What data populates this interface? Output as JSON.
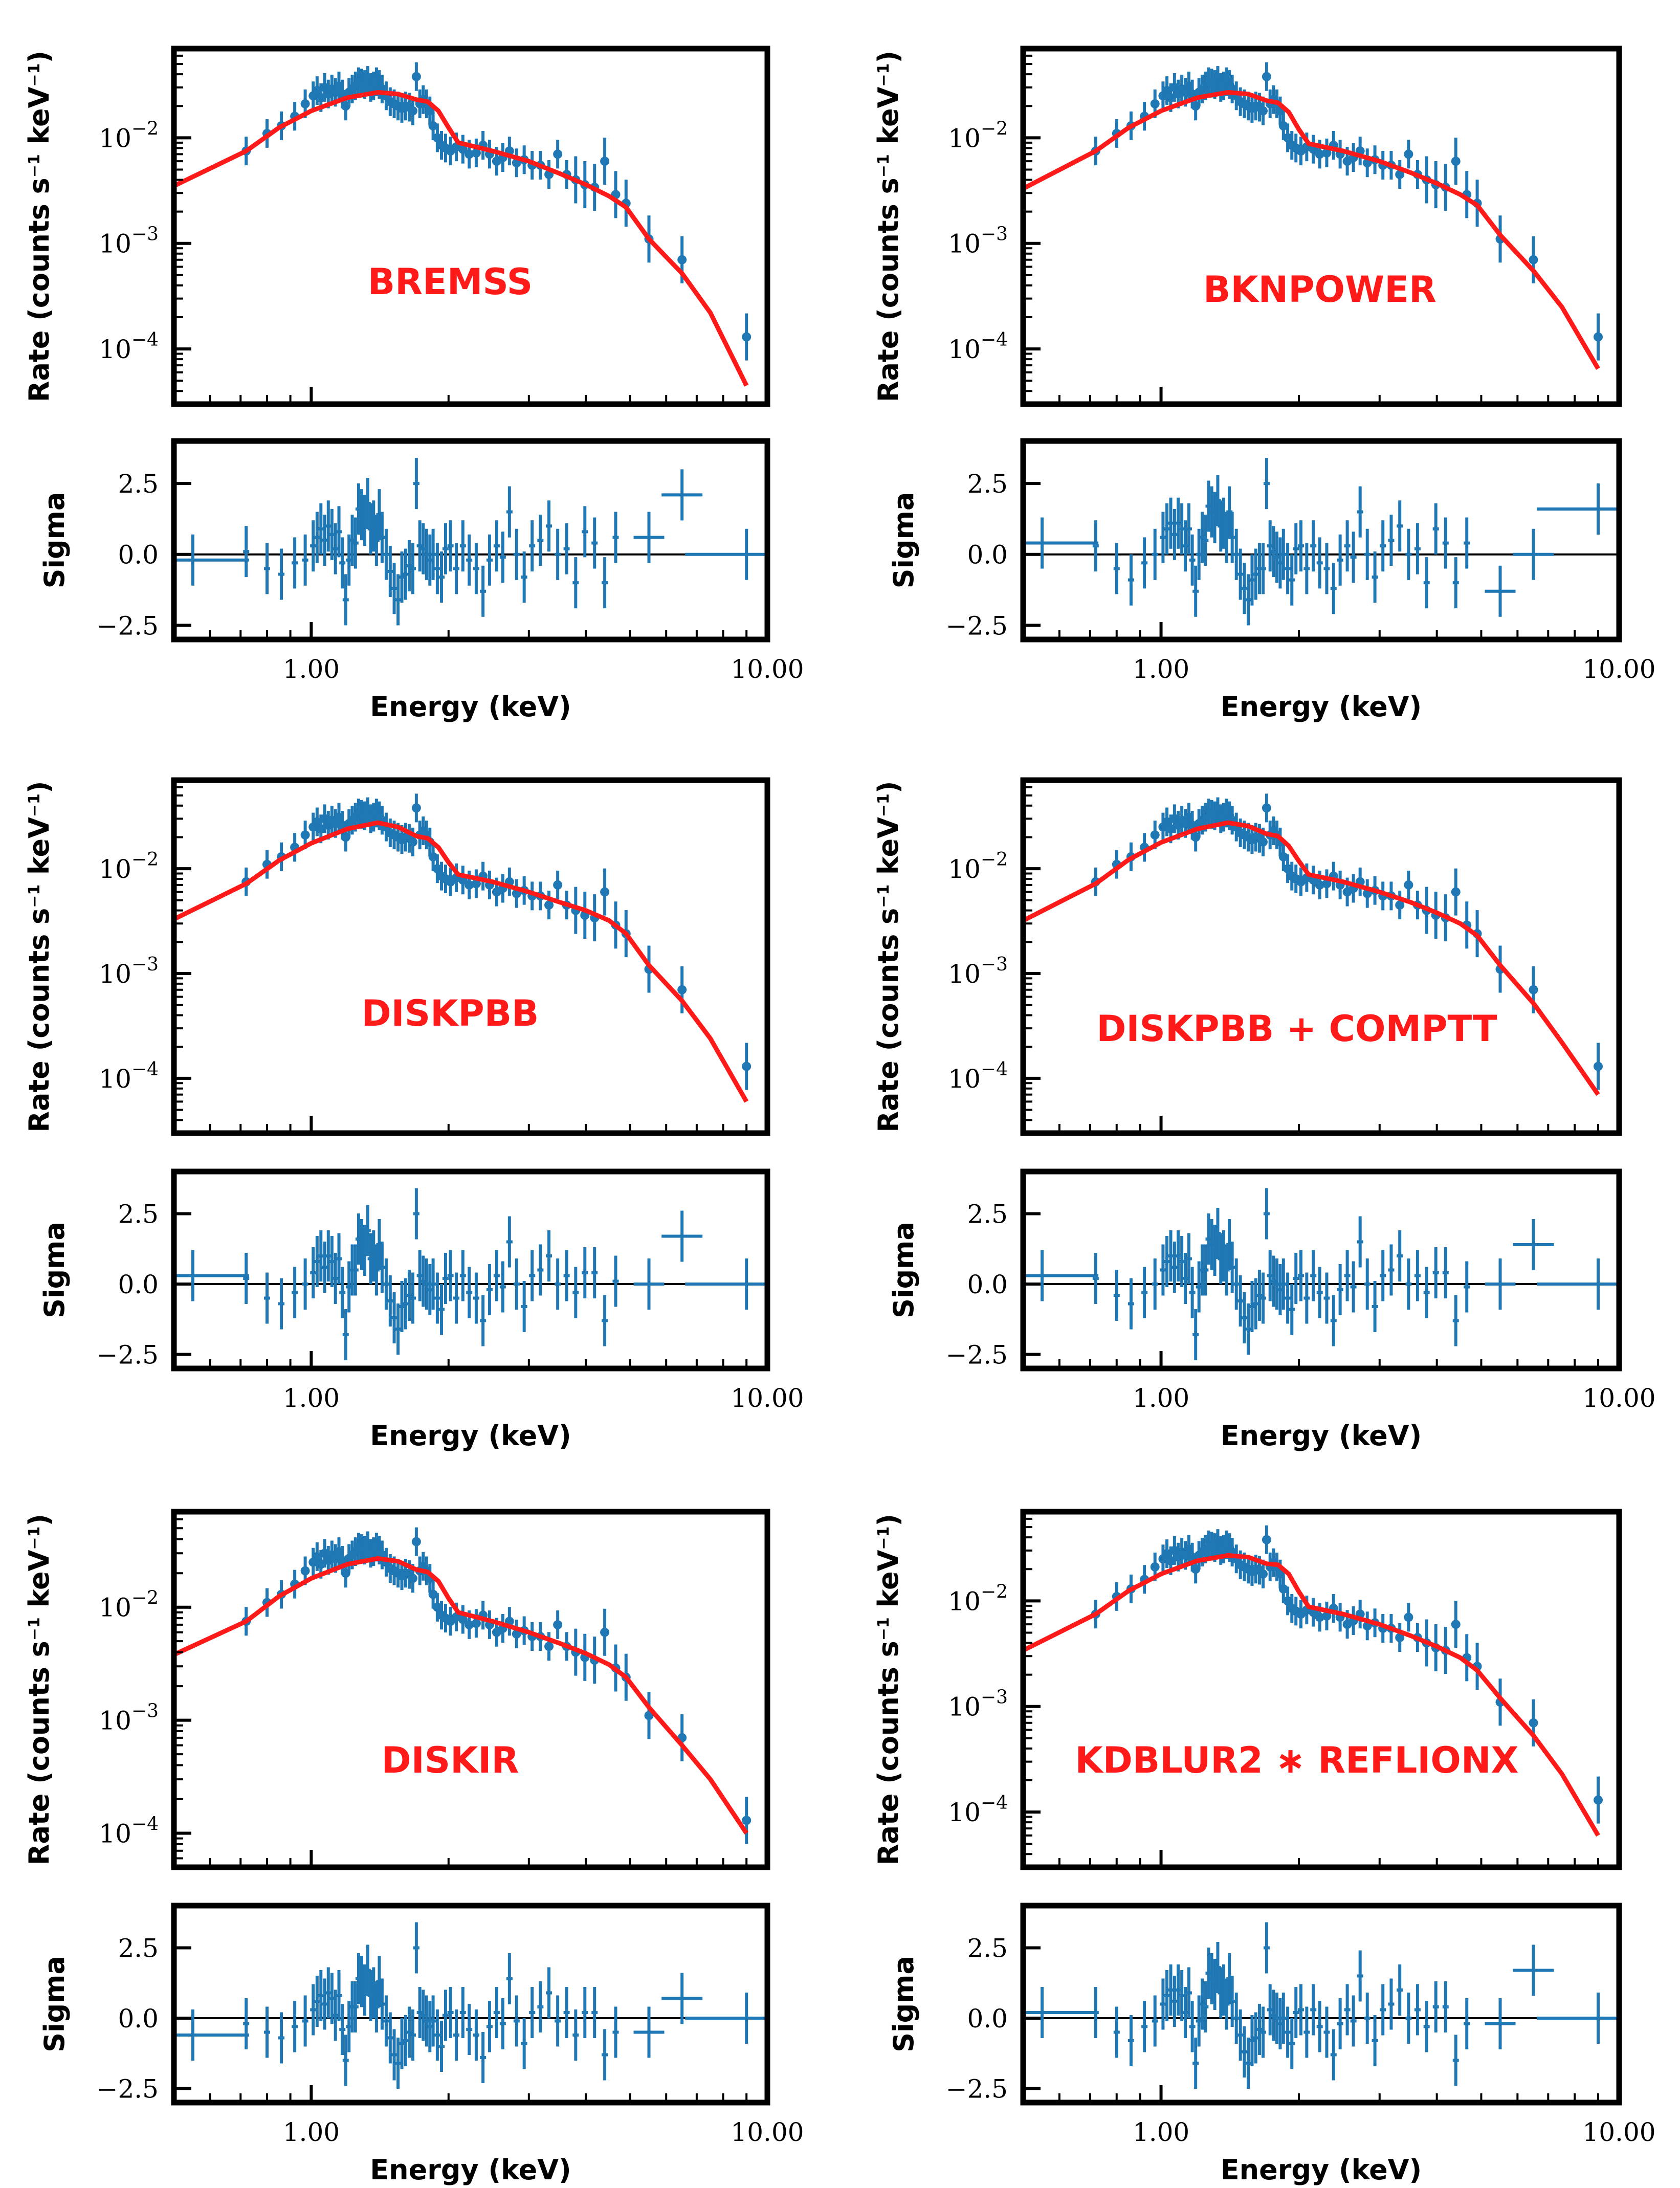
{
  "colors": {
    "data": "#1f77b4",
    "model": "#ff1a1a",
    "axis": "#000000"
  },
  "labels": {
    "rate_ylabel": "Rate (counts s$^{-1}$ keV$^{-1}$)",
    "rate_ylabel_parts": [
      "Rate (counts s",
      "−1",
      " keV",
      "−1",
      ")"
    ],
    "sigma_ylabel": "Sigma",
    "xlabel": "Energy (keV)"
  },
  "axes": {
    "energy_range_kev": [
      0.5,
      10
    ],
    "x_tick_labels": [
      {
        "v": 1,
        "text": "1.00"
      },
      {
        "v": 10,
        "text": "10.00"
      }
    ],
    "rate_ticks": [
      {
        "exp": -2,
        "text": "10"
      },
      {
        "exp": -3,
        "text": "10"
      },
      {
        "exp": -4,
        "text": "10"
      }
    ],
    "sigma_ylim": [
      -3,
      4
    ],
    "sigma_ticks": [
      {
        "v": 2.5,
        "text": "2.5"
      },
      {
        "v": 0,
        "text": "0.0"
      },
      {
        "v": -2.5,
        "text": "−2.5"
      }
    ]
  },
  "chart_data": {
    "type": "scatter",
    "xscale": "log",
    "yscale": "log",
    "observed_spectrum": {
      "x": [
        0.72,
        0.8,
        0.86,
        0.92,
        0.97,
        1.01,
        1.03,
        1.05,
        1.07,
        1.09,
        1.11,
        1.13,
        1.15,
        1.17,
        1.19,
        1.21,
        1.23,
        1.25,
        1.27,
        1.29,
        1.31,
        1.33,
        1.35,
        1.37,
        1.39,
        1.41,
        1.43,
        1.46,
        1.49,
        1.52,
        1.55,
        1.58,
        1.61,
        1.64,
        1.67,
        1.7,
        1.73,
        1.76,
        1.79,
        1.82,
        1.85,
        1.89,
        1.93,
        1.97,
        2.02,
        2.08,
        2.15,
        2.22,
        2.3,
        2.38,
        2.46,
        2.55,
        2.63,
        2.72,
        2.82,
        2.93,
        3.05,
        3.18,
        3.32,
        3.47,
        3.63,
        3.8,
        3.98,
        4.18,
        4.4,
        4.65,
        4.9,
        5.5,
        6.5,
        9.0
      ],
      "y": [
        0.0075,
        0.011,
        0.013,
        0.016,
        0.021,
        0.025,
        0.028,
        0.024,
        0.03,
        0.026,
        0.029,
        0.027,
        0.031,
        0.026,
        0.02,
        0.027,
        0.029,
        0.031,
        0.034,
        0.033,
        0.032,
        0.035,
        0.03,
        0.031,
        0.034,
        0.032,
        0.029,
        0.025,
        0.022,
        0.021,
        0.02,
        0.019,
        0.02,
        0.0195,
        0.018,
        0.038,
        0.021,
        0.023,
        0.021,
        0.018,
        0.013,
        0.01,
        0.0085,
        0.008,
        0.0075,
        0.0082,
        0.0078,
        0.007,
        0.0072,
        0.0085,
        0.007,
        0.006,
        0.0065,
        0.0075,
        0.0058,
        0.0062,
        0.0055,
        0.0055,
        0.0045,
        0.007,
        0.0045,
        0.004,
        0.0036,
        0.0034,
        0.006,
        0.0029,
        0.0024,
        0.0011,
        0.0007,
        0.00013
      ]
    },
    "residuals_x": [
      0.55,
      0.72,
      0.8,
      0.86,
      0.92,
      0.97,
      1.01,
      1.03,
      1.05,
      1.07,
      1.09,
      1.11,
      1.13,
      1.15,
      1.17,
      1.19,
      1.21,
      1.23,
      1.25,
      1.27,
      1.29,
      1.31,
      1.33,
      1.35,
      1.37,
      1.39,
      1.41,
      1.43,
      1.46,
      1.49,
      1.52,
      1.55,
      1.58,
      1.61,
      1.64,
      1.67,
      1.7,
      1.73,
      1.76,
      1.79,
      1.82,
      1.85,
      1.89,
      1.93,
      1.97,
      2.02,
      2.08,
      2.15,
      2.22,
      2.3,
      2.38,
      2.46,
      2.55,
      2.63,
      2.72,
      2.82,
      2.93,
      3.05,
      3.18,
      3.32,
      3.47,
      3.63,
      3.8,
      3.98,
      4.18,
      4.4,
      4.65,
      5.5,
      6.5,
      9.0
    ],
    "panels": [
      {
        "model": "BREMSS",
        "rate_ylim": [
          3e-05,
          0.07
        ],
        "model_curve": {
          "x": [
            0.5,
            0.72,
            0.85,
            1.0,
            1.2,
            1.4,
            1.55,
            1.7,
            1.8,
            1.9,
            2.0,
            2.1,
            2.5,
            3.0,
            3.5,
            4.0,
            4.5,
            4.9,
            5.5,
            6.5,
            7.5,
            9.0
          ],
          "y": [
            0.0035,
            0.0075,
            0.0125,
            0.018,
            0.024,
            0.027,
            0.026,
            0.023,
            0.022,
            0.018,
            0.0125,
            0.009,
            0.0075,
            0.006,
            0.0046,
            0.0036,
            0.0028,
            0.0022,
            0.0011,
            0.00052,
            0.00022,
            4.5e-05
          ]
        },
        "residuals": [
          -0.2,
          0.1,
          -0.5,
          -0.7,
          -0.3,
          -0.2,
          0.3,
          0.6,
          0.9,
          0.5,
          1.0,
          0.7,
          0.2,
          0.8,
          -0.3,
          -1.6,
          -0.2,
          0.5,
          0.4,
          1.6,
          1.4,
          1.2,
          1.8,
          0.9,
          1.0,
          0.5,
          1.4,
          0.6,
          0.0,
          -0.6,
          -1.2,
          -1.6,
          -0.8,
          -0.7,
          -0.4,
          -0.5,
          2.5,
          0.3,
          0.2,
          0.0,
          -0.2,
          0.0,
          -0.5,
          -0.8,
          0.2,
          0.3,
          -0.5,
          0.3,
          -0.2,
          -0.5,
          -1.3,
          -0.2,
          0.3,
          -0.1,
          1.5,
          0.0,
          -0.8,
          0.3,
          0.5,
          1.0,
          0.0,
          0.2,
          -1.0,
          0.8,
          0.4,
          -1.0,
          0.6,
          0.6,
          2.1,
          0.0
        ]
      },
      {
        "model": "BKNPOWER",
        "rate_ylim": [
          3e-05,
          0.07
        ],
        "model_curve": {
          "x": [
            0.5,
            0.72,
            0.85,
            1.0,
            1.2,
            1.4,
            1.55,
            1.7,
            1.8,
            1.9,
            2.0,
            2.1,
            2.5,
            3.0,
            3.5,
            4.0,
            4.5,
            4.9,
            5.5,
            6.5,
            7.5,
            9.0
          ],
          "y": [
            0.0033,
            0.0075,
            0.0125,
            0.018,
            0.024,
            0.027,
            0.026,
            0.0225,
            0.0215,
            0.0175,
            0.012,
            0.0088,
            0.0075,
            0.006,
            0.0047,
            0.0037,
            0.0029,
            0.0023,
            0.0012,
            0.00055,
            0.00025,
            6.5e-05
          ]
        },
        "residuals": [
          0.4,
          0.3,
          -0.5,
          -0.9,
          -0.3,
          0.0,
          0.6,
          0.9,
          1.1,
          0.7,
          1.1,
          0.9,
          0.3,
          0.9,
          -0.2,
          -1.3,
          0.0,
          0.6,
          0.5,
          1.7,
          1.5,
          1.3,
          1.9,
          1.0,
          1.1,
          0.6,
          1.5,
          0.6,
          0.0,
          -0.7,
          -1.2,
          -1.6,
          -0.9,
          -0.7,
          -0.5,
          -0.5,
          2.5,
          0.3,
          0.1,
          -0.1,
          -0.3,
          0.0,
          -0.5,
          -0.9,
          0.2,
          0.3,
          -0.5,
          0.3,
          -0.3,
          -0.5,
          -1.2,
          -0.2,
          0.3,
          -0.1,
          1.5,
          0.0,
          -0.8,
          0.3,
          0.5,
          1.0,
          0.0,
          0.2,
          -1.0,
          0.9,
          0.4,
          -1.0,
          0.4,
          -1.3,
          0.0,
          1.6
        ]
      },
      {
        "model": "DISKPBB",
        "rate_ylim": [
          3e-05,
          0.07
        ],
        "model_curve": {
          "x": [
            0.5,
            0.72,
            0.85,
            1.0,
            1.2,
            1.4,
            1.55,
            1.7,
            1.8,
            1.9,
            2.0,
            2.1,
            2.5,
            3.0,
            3.5,
            4.0,
            4.5,
            4.9,
            5.5,
            6.5,
            7.5,
            9.0
          ],
          "y": [
            0.0033,
            0.0072,
            0.012,
            0.0175,
            0.024,
            0.0275,
            0.025,
            0.0205,
            0.0195,
            0.016,
            0.0115,
            0.0088,
            0.0075,
            0.006,
            0.0048,
            0.004,
            0.0032,
            0.0024,
            0.0012,
            0.00055,
            0.00024,
            6e-05
          ]
        },
        "residuals": [
          0.3,
          0.2,
          -0.5,
          -0.7,
          -0.3,
          0.0,
          0.4,
          0.8,
          1.0,
          0.6,
          1.0,
          0.8,
          0.2,
          0.9,
          -0.3,
          -1.8,
          -0.1,
          0.5,
          0.5,
          1.6,
          1.4,
          1.2,
          1.9,
          0.9,
          1.0,
          0.5,
          1.4,
          0.6,
          0.0,
          -0.6,
          -1.2,
          -1.6,
          -0.8,
          -0.7,
          -0.4,
          -0.5,
          2.5,
          0.3,
          0.1,
          0.0,
          -0.2,
          0.0,
          -0.5,
          -0.9,
          0.2,
          0.3,
          -0.5,
          0.3,
          -0.3,
          -0.5,
          -1.3,
          -0.2,
          0.3,
          -0.1,
          1.5,
          0.0,
          -0.8,
          0.3,
          0.5,
          1.0,
          0.0,
          0.3,
          -0.3,
          0.4,
          0.4,
          -1.3,
          0.1,
          0.0,
          1.7,
          0.0
        ]
      },
      {
        "model": "DISKPBB + COMPTT",
        "rate_ylim": [
          3e-05,
          0.07
        ],
        "model_curve": {
          "x": [
            0.5,
            0.72,
            0.85,
            1.0,
            1.2,
            1.4,
            1.55,
            1.7,
            1.8,
            1.9,
            2.0,
            2.1,
            2.5,
            3.0,
            3.5,
            4.0,
            4.5,
            4.9,
            5.5,
            6.5,
            7.5,
            9.0
          ],
          "y": [
            0.0032,
            0.0072,
            0.0122,
            0.0178,
            0.024,
            0.0275,
            0.0255,
            0.0215,
            0.0205,
            0.0165,
            0.0118,
            0.0088,
            0.0075,
            0.006,
            0.0048,
            0.0038,
            0.003,
            0.0023,
            0.0012,
            0.00052,
            0.00022,
            7e-05
          ]
        },
        "residuals": [
          0.3,
          0.2,
          -0.4,
          -0.7,
          -0.3,
          0.0,
          0.5,
          0.8,
          1.0,
          0.6,
          1.0,
          0.8,
          0.2,
          0.9,
          -0.3,
          -1.8,
          -0.1,
          0.5,
          0.5,
          1.6,
          1.4,
          1.2,
          1.8,
          0.9,
          1.0,
          0.5,
          1.4,
          0.6,
          0.0,
          -0.6,
          -1.2,
          -1.6,
          -0.8,
          -0.7,
          -0.4,
          -0.5,
          2.5,
          0.3,
          0.1,
          0.0,
          -0.2,
          0.0,
          -0.5,
          -0.9,
          0.2,
          0.3,
          -0.5,
          0.3,
          -0.3,
          -0.5,
          -1.3,
          -0.2,
          0.3,
          -0.1,
          1.5,
          0.0,
          -0.8,
          0.3,
          0.5,
          1.0,
          0.0,
          0.3,
          -0.3,
          0.4,
          0.4,
          -1.3,
          -0.1,
          0.0,
          1.4,
          0.0
        ]
      },
      {
        "model": "DISKIR",
        "rate_ylim": [
          5e-05,
          0.07
        ],
        "model_curve": {
          "x": [
            0.5,
            0.72,
            0.85,
            1.0,
            1.2,
            1.4,
            1.55,
            1.7,
            1.8,
            1.9,
            2.0,
            2.1,
            2.5,
            3.0,
            3.5,
            4.0,
            4.5,
            4.9,
            5.5,
            6.5,
            7.5,
            9.0
          ],
          "y": [
            0.0038,
            0.0075,
            0.0125,
            0.018,
            0.024,
            0.027,
            0.0255,
            0.0215,
            0.0205,
            0.017,
            0.012,
            0.009,
            0.0075,
            0.006,
            0.0048,
            0.0039,
            0.0031,
            0.0024,
            0.0013,
            0.0006,
            0.0003,
            0.0001
          ]
        },
        "residuals": [
          -0.6,
          -0.2,
          -0.5,
          -0.7,
          -0.3,
          -0.1,
          0.3,
          0.6,
          0.8,
          0.5,
          0.9,
          0.7,
          0.1,
          0.8,
          -0.4,
          -1.5,
          -0.3,
          0.4,
          0.4,
          1.4,
          1.3,
          1.0,
          1.7,
          0.8,
          0.9,
          0.4,
          1.3,
          0.5,
          -0.1,
          -0.7,
          -1.3,
          -1.6,
          -0.9,
          -0.8,
          -0.5,
          -0.6,
          2.5,
          0.2,
          0.1,
          -0.1,
          -0.3,
          -0.1,
          -0.6,
          -1.0,
          0.1,
          0.2,
          -0.6,
          0.2,
          -0.4,
          -0.6,
          -1.4,
          -0.3,
          0.2,
          -0.2,
          1.4,
          -0.1,
          -0.9,
          0.2,
          0.4,
          0.9,
          -0.1,
          0.2,
          -0.6,
          0.2,
          0.2,
          -1.3,
          -0.5,
          -0.5,
          0.7,
          0.0
        ]
      },
      {
        "model": "KDBLUR2 ∗ REFLIONX",
        "rate_ylim": [
          3e-05,
          0.07
        ],
        "model_curve": {
          "x": [
            0.5,
            0.72,
            0.85,
            1.0,
            1.2,
            1.4,
            1.55,
            1.7,
            1.8,
            1.9,
            2.0,
            2.1,
            2.5,
            3.0,
            3.5,
            4.0,
            4.5,
            4.9,
            5.5,
            6.5,
            7.5,
            9.0
          ],
          "y": [
            0.0034,
            0.0075,
            0.0125,
            0.018,
            0.024,
            0.027,
            0.026,
            0.0225,
            0.022,
            0.018,
            0.0122,
            0.0088,
            0.0075,
            0.006,
            0.0047,
            0.0037,
            0.0029,
            0.0022,
            0.0012,
            0.00053,
            0.00023,
            6e-05
          ]
        },
        "residuals": [
          0.2,
          0.2,
          -0.5,
          -0.8,
          -0.3,
          -0.1,
          0.5,
          0.8,
          1.0,
          0.6,
          1.0,
          0.8,
          0.2,
          0.9,
          -0.3,
          -1.6,
          -0.1,
          0.5,
          0.4,
          1.6,
          1.4,
          1.2,
          1.8,
          0.9,
          1.0,
          0.5,
          1.4,
          0.6,
          0.0,
          -0.6,
          -1.2,
          -1.6,
          -0.8,
          -0.7,
          -0.4,
          -0.5,
          2.5,
          0.3,
          0.1,
          0.0,
          -0.2,
          0.0,
          -0.5,
          -0.9,
          0.2,
          0.3,
          -0.5,
          0.3,
          -0.3,
          -0.5,
          -1.3,
          -0.2,
          0.3,
          -0.1,
          1.5,
          0.0,
          -0.8,
          0.3,
          0.5,
          1.0,
          0.0,
          0.3,
          -0.3,
          0.4,
          0.4,
          -1.5,
          -0.2,
          -0.2,
          1.7,
          0.0
        ]
      }
    ]
  }
}
